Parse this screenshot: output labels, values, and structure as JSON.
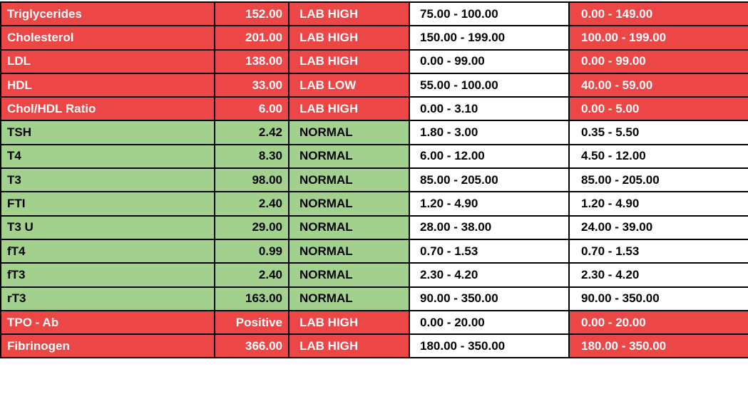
{
  "colors": {
    "high": "#ec4646",
    "normal": "#a2d18e",
    "border": "#000000",
    "cell_default": "#ffffff"
  },
  "rows": [
    {
      "test": "Triglycerides",
      "result": "152.00",
      "flag": "LAB HIGH",
      "optimal": "75.00 - 100.00",
      "standard": "0.00 - 149.00",
      "status": "high",
      "standard_out": true
    },
    {
      "test": "Cholesterol",
      "result": "201.00",
      "flag": "LAB HIGH",
      "optimal": "150.00 - 199.00",
      "standard": "100.00 - 199.00",
      "status": "high",
      "standard_out": true
    },
    {
      "test": "LDL",
      "result": "138.00",
      "flag": "LAB HIGH",
      "optimal": "0.00 - 99.00",
      "standard": "0.00 - 99.00",
      "status": "high",
      "standard_out": true
    },
    {
      "test": "HDL",
      "result": "33.00",
      "flag": "LAB LOW",
      "optimal": "55.00 - 100.00",
      "standard": "40.00 - 59.00",
      "status": "high",
      "standard_out": true
    },
    {
      "test": "Chol/HDL Ratio",
      "result": "6.00",
      "flag": "LAB HIGH",
      "optimal": "0.00 - 3.10",
      "standard": "0.00 - 5.00",
      "status": "high",
      "standard_out": true
    },
    {
      "test": "TSH",
      "result": "2.42",
      "flag": "NORMAL",
      "optimal": "1.80 - 3.00",
      "standard": "0.35 - 5.50",
      "status": "normal",
      "standard_out": false
    },
    {
      "test": "T4",
      "result": "8.30",
      "flag": "NORMAL",
      "optimal": "6.00 - 12.00",
      "standard": "4.50 - 12.00",
      "status": "normal",
      "standard_out": false
    },
    {
      "test": "T3",
      "result": "98.00",
      "flag": "NORMAL",
      "optimal": "85.00 - 205.00",
      "standard": "85.00 - 205.00",
      "status": "normal",
      "standard_out": false
    },
    {
      "test": "FTI",
      "result": "2.40",
      "flag": "NORMAL",
      "optimal": "1.20 - 4.90",
      "standard": "1.20 - 4.90",
      "status": "normal",
      "standard_out": false
    },
    {
      "test": "T3 U",
      "result": "29.00",
      "flag": "NORMAL",
      "optimal": "28.00 - 38.00",
      "standard": "24.00 - 39.00",
      "status": "normal",
      "standard_out": false
    },
    {
      "test": "fT4",
      "result": "0.99",
      "flag": "NORMAL",
      "optimal": "0.70 - 1.53",
      "standard": "0.70 - 1.53",
      "status": "normal",
      "standard_out": false
    },
    {
      "test": "fT3",
      "result": "2.40",
      "flag": "NORMAL",
      "optimal": "2.30 - 4.20",
      "standard": "2.30 - 4.20",
      "status": "normal",
      "standard_out": false
    },
    {
      "test": "rT3",
      "result": "163.00",
      "flag": "NORMAL",
      "optimal": "90.00 - 350.00",
      "standard": "90.00 - 350.00",
      "status": "normal",
      "standard_out": false
    },
    {
      "test": "TPO - Ab",
      "result": "Positive",
      "flag": "LAB HIGH",
      "optimal": "0.00 - 20.00",
      "standard": "0.00 - 20.00",
      "status": "high",
      "standard_out": true
    },
    {
      "test": "Fibrinogen",
      "result": "366.00",
      "flag": "LAB HIGH",
      "optimal": "180.00 - 350.00",
      "standard": "180.00 - 350.00",
      "status": "high",
      "standard_out": true
    }
  ]
}
